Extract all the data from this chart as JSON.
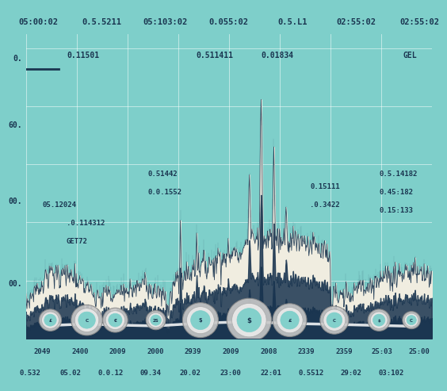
{
  "background_color": "#7ecfca",
  "plot_bg": "#7ecfca",
  "fill_cream": "#f0ede0",
  "fill_dark": "#1a3550",
  "line_color": "#1a3550",
  "grid_color": "#a8dcd8",
  "x_tick_labels_top": [
    "05:00:02",
    "0.5.5211",
    "05:103:02",
    "0.055:02",
    "0.5.L1",
    "02:55:02",
    "02:55:02"
  ],
  "x_tick_labels_bottom_row1": [
    "2049",
    "2400",
    "2009",
    "2000",
    "2939",
    "2009",
    "2008",
    "2339",
    "2359",
    "25:03",
    "25:00"
  ],
  "x_tick_labels_bottom_row2": [
    "0.532",
    "05.02",
    "0.0.12",
    "09.34",
    "20.02",
    "23:00",
    "22:01",
    "0.5512",
    "29:02",
    "03:102"
  ],
  "annotations_top": [
    {
      "text": "0.11501",
      "xf": 0.1
    },
    {
      "text": "0.511411",
      "xf": 0.42
    },
    {
      "text": "0.01834",
      "xf": 0.58
    },
    {
      "text": "GEL",
      "xf": 0.93
    }
  ],
  "annotations_mid": [
    {
      "text": "05.12024",
      "xf": 0.04,
      "yf": 0.44
    },
    {
      "text": ".0.114312",
      "xf": 0.1,
      "yf": 0.38
    },
    {
      "text": "GET72",
      "xf": 0.1,
      "yf": 0.32
    },
    {
      "text": "0.51442",
      "xf": 0.3,
      "yf": 0.54
    },
    {
      "text": "0.0.1552",
      "xf": 0.3,
      "yf": 0.48
    },
    {
      "text": "0.15111",
      "xf": 0.7,
      "yf": 0.5
    },
    {
      "text": ".0.3422",
      "xf": 0.7,
      "yf": 0.44
    },
    {
      "text": "0.5.14182",
      "xf": 0.87,
      "yf": 0.54
    },
    {
      "text": "0.45:182",
      "xf": 0.87,
      "yf": 0.48
    },
    {
      "text": "0.15:133",
      "xf": 0.87,
      "yf": 0.42
    }
  ],
  "circle_xf": [
    0.06,
    0.15,
    0.22,
    0.32,
    0.43,
    0.55,
    0.65,
    0.76,
    0.87,
    0.95
  ],
  "circle_sizes": [
    0.025,
    0.035,
    0.028,
    0.022,
    0.04,
    0.05,
    0.038,
    0.032,
    0.025,
    0.02
  ],
  "n_points": 800
}
